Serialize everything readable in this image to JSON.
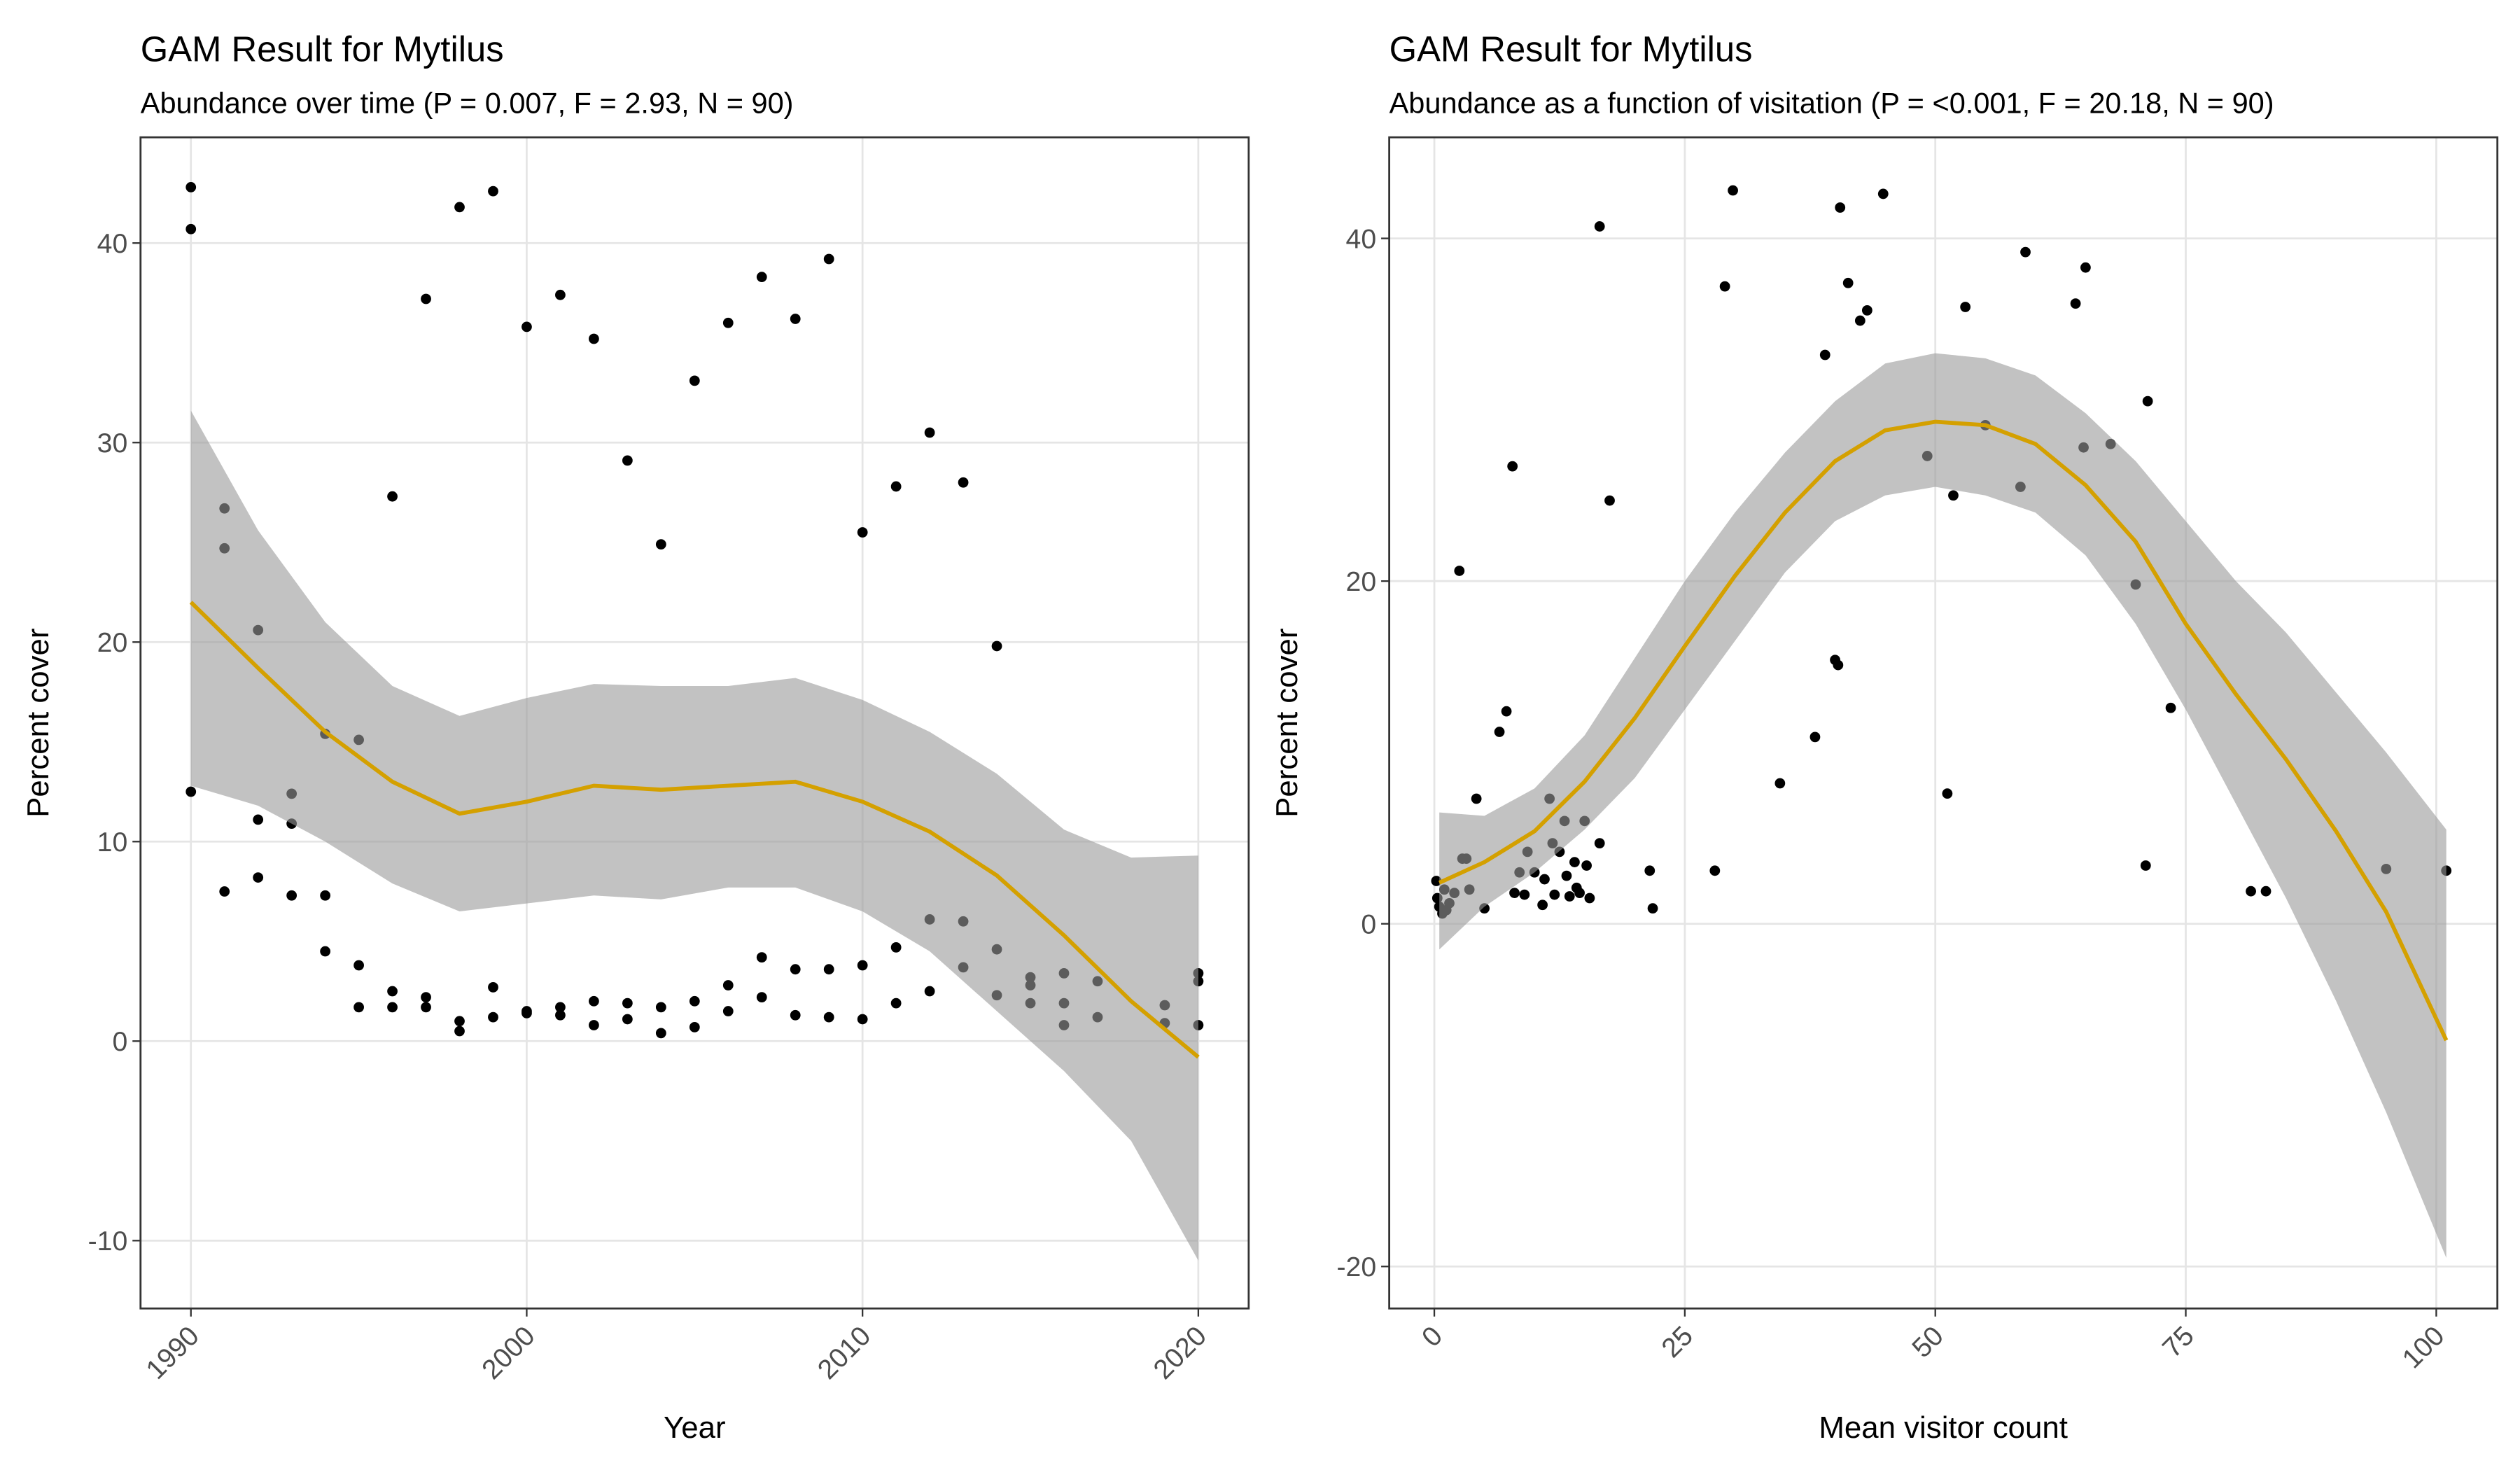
{
  "chart_data": [
    {
      "type": "scatter",
      "title": "GAM Result for Mytilus",
      "subtitle": "Abundance over time (P = 0.007, F = 2.93, N = 90)",
      "xlabel": "Year",
      "ylabel": "Percent cover",
      "x": [
        1990,
        1990,
        1990,
        1991,
        1991,
        1991,
        1992,
        1992,
        1992,
        1993,
        1993,
        1993,
        1994,
        1994,
        1994,
        1995,
        1995,
        1995,
        1996,
        1996,
        1996,
        1997,
        1997,
        1997,
        1998,
        1998,
        1998,
        1999,
        1999,
        1999,
        2000,
        2000,
        2000,
        2001,
        2001,
        2001,
        2002,
        2002,
        2002,
        2003,
        2003,
        2003,
        2004,
        2004,
        2004,
        2005,
        2005,
        2005,
        2006,
        2006,
        2006,
        2007,
        2007,
        2007,
        2008,
        2008,
        2008,
        2009,
        2009,
        2009,
        2010,
        2010,
        2010,
        2011,
        2011,
        2011,
        2012,
        2012,
        2012,
        2013,
        2013,
        2013,
        2014,
        2014,
        2014,
        2015,
        2015,
        2015,
        2016,
        2016,
        2016,
        2017,
        2017,
        2019,
        2019,
        2020,
        2020,
        2020
      ],
      "y": [
        42.8,
        40.7,
        12.5,
        26.7,
        24.7,
        7.5,
        20.6,
        11.1,
        8.2,
        12.4,
        10.9,
        7.3,
        15.4,
        7.3,
        4.5,
        15.1,
        3.8,
        1.7,
        27.3,
        2.5,
        1.7,
        37.2,
        2.2,
        1.7,
        41.8,
        1.0,
        0.5,
        42.6,
        2.7,
        1.2,
        35.8,
        1.5,
        1.4,
        37.4,
        1.7,
        1.3,
        35.2,
        2.0,
        0.8,
        29.1,
        1.9,
        1.1,
        24.9,
        1.7,
        0.4,
        33.1,
        2.0,
        0.7,
        36.0,
        2.8,
        1.5,
        38.3,
        4.2,
        2.2,
        36.2,
        3.6,
        1.3,
        39.2,
        3.6,
        1.2,
        25.5,
        3.8,
        1.1,
        27.8,
        4.7,
        1.9,
        30.5,
        6.1,
        2.5,
        28.0,
        6.0,
        3.7,
        19.8,
        4.6,
        2.3,
        3.2,
        2.8,
        1.9,
        3.4,
        1.9,
        0.8,
        3.0,
        1.2,
        1.8,
        0.9,
        3.4,
        3.0,
        0.8
      ],
      "xlim": [
        1988.5,
        2021.5
      ],
      "ylim": [
        -13.4,
        45.3
      ],
      "xticks": [
        1990,
        2000,
        2010,
        2020
      ],
      "yticks": [
        -10,
        0,
        10,
        20,
        30,
        40
      ],
      "grid": true,
      "point_color": "#000000",
      "line_color": "#d4a000",
      "ribbon_color": "#999999",
      "smooth": {
        "x": [
          1990,
          1992,
          1994,
          1996,
          1998,
          2000,
          2002,
          2004,
          2006,
          2008,
          2010,
          2012,
          2014,
          2016,
          2018,
          2020
        ],
        "y": [
          22,
          18.7,
          15.5,
          13,
          11.4,
          12,
          12.8,
          12.6,
          12.8,
          13,
          12,
          10.5,
          8.3,
          5.3,
          2,
          -0.8
        ],
        "lower": [
          12.8,
          11.8,
          10,
          7.9,
          6.5,
          6.9,
          7.3,
          7.1,
          7.7,
          7.7,
          6.5,
          4.5,
          1.5,
          -1.5,
          -5,
          -11
        ],
        "upper": [
          31.6,
          25.6,
          21,
          17.8,
          16.3,
          17.2,
          17.9,
          17.8,
          17.8,
          18.2,
          17.1,
          15.5,
          13.4,
          10.6,
          9.2,
          9.3
        ]
      }
    },
    {
      "type": "scatter",
      "title": "GAM Result for Mytilus",
      "subtitle": "Abundance as a function of visitation (P = <0.001, F = 20.18, N = 90)",
      "xlabel": "Mean visitor count",
      "ylabel": "Percent cover",
      "x": [
        0.2,
        0.3,
        0.5,
        0.8,
        1,
        1.2,
        1.5,
        2,
        2.5,
        2.8,
        3.2,
        3.5,
        4.2,
        5,
        6.5,
        7.2,
        7.8,
        8,
        8.5,
        9,
        9.3,
        10,
        10.8,
        11,
        11.5,
        11.8,
        12,
        12.5,
        13,
        13.2,
        13.5,
        14,
        14.2,
        14.5,
        15,
        15.2,
        15.5,
        16.5,
        16.5,
        17.5,
        21.5,
        21.8,
        28,
        29,
        29.8,
        34.5,
        38,
        39,
        40,
        40.3,
        40.5,
        41.3,
        42.5,
        43.2,
        44.8,
        49.2,
        51.2,
        51.8,
        53,
        55,
        58.5,
        59,
        64,
        64.8,
        65,
        67.5,
        70,
        71,
        71.2,
        73.5,
        81.5,
        83,
        95,
        101
      ],
      "y": [
        2.5,
        1.5,
        1.0,
        0.6,
        2,
        0.8,
        1.2,
        1.8,
        20.6,
        3.8,
        3.8,
        2,
        7.3,
        0.9,
        11.2,
        12.4,
        26.7,
        1.8,
        3,
        1.7,
        4.2,
        3,
        1.1,
        2.6,
        7.3,
        4.7,
        1.7,
        4.2,
        6,
        2.8,
        1.6,
        3.6,
        2.1,
        1.8,
        6,
        3.4,
        1.5,
        4.7,
        40.7,
        24.7,
        3.1,
        0.9,
        3.1,
        37.2,
        42.8,
        8.2,
        10.9,
        33.2,
        15.4,
        15.1,
        41.8,
        37.4,
        35.2,
        35.8,
        42.6,
        27.3,
        7.6,
        25,
        36,
        29.1,
        25.5,
        39.2,
        36.2,
        27.8,
        38.3,
        28,
        19.8,
        3.4,
        30.5,
        12.6,
        1.9,
        1.9,
        3.2,
        3.1
      ],
      "xlim": [
        -4.5,
        106.1
      ],
      "ylim": [
        -22.45,
        45.9
      ],
      "xticks": [
        0,
        25,
        50,
        75,
        100
      ],
      "yticks": [
        -20,
        0,
        20,
        40
      ],
      "grid": true,
      "point_color": "#000000",
      "line_color": "#d4a000",
      "ribbon_color": "#999999",
      "smooth": {
        "x": [
          0.5,
          5,
          10,
          15,
          20,
          25,
          30,
          35,
          40,
          45,
          50,
          55,
          60,
          65,
          70,
          75,
          80,
          85,
          90,
          95,
          101
        ],
        "y": [
          2.4,
          3.6,
          5.4,
          8.3,
          12,
          16.2,
          20.3,
          24,
          27,
          28.8,
          29.3,
          29.1,
          28,
          25.6,
          22.3,
          17.5,
          13.4,
          9.6,
          5.4,
          0.7,
          -6.8
        ],
        "lower": [
          -1.5,
          1,
          3,
          5.5,
          8.5,
          12.5,
          16.5,
          20.5,
          23.5,
          25,
          25.5,
          25,
          24,
          21.5,
          17.5,
          12.5,
          7,
          1.5,
          -4.5,
          -11,
          -19.5
        ],
        "upper": [
          6.5,
          6.3,
          7.9,
          11,
          15.5,
          20,
          24,
          27.5,
          30.5,
          32.7,
          33.3,
          33,
          32,
          29.8,
          27,
          23.5,
          20,
          17,
          13.5,
          10,
          5.5
        ]
      }
    }
  ]
}
